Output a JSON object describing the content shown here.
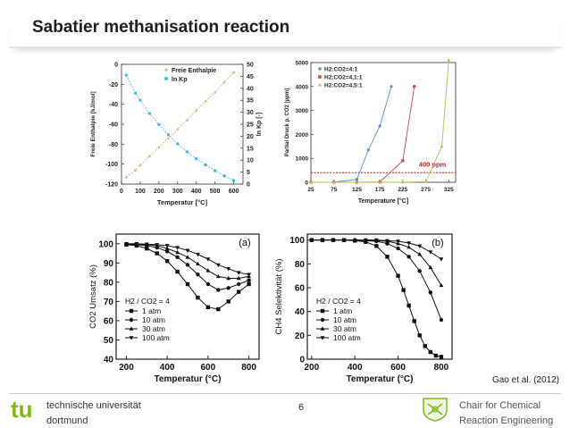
{
  "slide": {
    "title": "Sabatier methanisation reaction",
    "citation": "Gao et al. (2012)",
    "page_number": "6"
  },
  "footer": {
    "logo_text": "tu",
    "university_line1": "technische universität",
    "university_line2": "dortmund",
    "chair_line1": "Chair for Chemical",
    "chair_line2": "Reaction Engineering"
  },
  "chart_data": [
    {
      "type": "line",
      "xlabel": "Temperatur [°C]",
      "ylabel": "Freie Enthalpie [kJ/mol]",
      "y2label": "ln Kp [-]",
      "xlim": [
        0,
        650
      ],
      "ylim": [
        -120,
        0
      ],
      "y2lim": [
        0,
        50
      ],
      "xticks": [
        "0",
        "100",
        "200",
        "300",
        "400",
        "500",
        "600"
      ],
      "yticks": [
        "0",
        "-20",
        "-40",
        "-60",
        "-80",
        "-100",
        "-120"
      ],
      "y2ticks": [
        "50",
        "45",
        "40",
        "35",
        "30",
        "25",
        "20",
        "15",
        "10",
        "5",
        "0"
      ],
      "legend_position": "top-left",
      "series": [
        {
          "name": "Freie Enthalpie",
          "axis": "left",
          "color": "#e8a466",
          "x": [
            25,
            75,
            100,
            150,
            200,
            250,
            300,
            350,
            400,
            450,
            500,
            550,
            600
          ],
          "values": [
            -113,
            -106,
            -101,
            -92,
            -83,
            -74,
            -65,
            -56,
            -46,
            -37,
            -28,
            -18,
            -8
          ]
        },
        {
          "name": "ln Kp",
          "axis": "right",
          "color": "#3fb4dc",
          "x": [
            25,
            75,
            100,
            150,
            200,
            250,
            300,
            350,
            400,
            450,
            500,
            550,
            600
          ],
          "values": [
            45.5,
            38,
            35,
            29.5,
            24.8,
            20.6,
            16.8,
            13.5,
            10.6,
            8,
            5.6,
            3.4,
            1.5
          ]
        }
      ]
    },
    {
      "type": "line",
      "xlabel": "Temperature [°C]",
      "ylabel": "Partial Druck p. CO2 [ppm]",
      "xlim": [
        25,
        340
      ],
      "ylim": [
        0,
        5000
      ],
      "xticks": [
        "25",
        "75",
        "125",
        "175",
        "225",
        "275",
        "325"
      ],
      "yticks": [
        "0",
        "1000",
        "2000",
        "3000",
        "4000",
        "5000"
      ],
      "annotation": "400 ppm",
      "reference_value": 400,
      "legend_position": "top-left",
      "series": [
        {
          "name": "H2:CO2=4:1",
          "color": "#5b8fd6",
          "x": [
            25,
            75,
            125,
            150,
            175,
            200
          ],
          "values": [
            0,
            5,
            120,
            1350,
            2350,
            4000
          ]
        },
        {
          "name": "H2:CO2=4,1:1",
          "color": "#d2464b",
          "x": [
            25,
            75,
            125,
            175,
            225,
            250
          ],
          "values": [
            0,
            0,
            0,
            10,
            900,
            4000
          ]
        },
        {
          "name": "H2:CO2=4,5:1",
          "color": "#b7b84e",
          "x": [
            25,
            75,
            125,
            175,
            225,
            275,
            310,
            325
          ],
          "values": [
            0,
            0,
            0,
            0,
            0,
            20,
            1500,
            5100
          ]
        }
      ]
    },
    {
      "type": "line",
      "panel_label": "(a)",
      "xlabel": "Temperatur (°C)",
      "ylabel": "CO2 Umsatz (%)",
      "xlim": [
        150,
        850
      ],
      "ylim": [
        40,
        105
      ],
      "xticks": [
        "200",
        "400",
        "600",
        "800"
      ],
      "yticks": [
        "40",
        "50",
        "60",
        "70",
        "80",
        "90",
        "100"
      ],
      "legend_title": "H2 / CO2 = 4",
      "legend_position": "bottom-left",
      "series": [
        {
          "name": "1 atm",
          "marker": "square",
          "x": [
            200,
            250,
            300,
            350,
            400,
            450,
            500,
            550,
            600,
            650,
            700,
            750,
            800
          ],
          "values": [
            99.5,
            99,
            97.5,
            95,
            91,
            85.5,
            79,
            72,
            67,
            66,
            70,
            75,
            79
          ]
        },
        {
          "name": "10 atm",
          "marker": "circle",
          "x": [
            200,
            250,
            300,
            350,
            400,
            450,
            500,
            550,
            600,
            650,
            700,
            750,
            800
          ],
          "values": [
            99.8,
            99.5,
            99,
            98,
            96,
            93,
            89,
            84,
            79,
            76,
            77,
            79,
            81
          ]
        },
        {
          "name": "30 atm",
          "marker": "triangle-up",
          "x": [
            200,
            250,
            300,
            350,
            400,
            450,
            500,
            550,
            600,
            650,
            700,
            750,
            800
          ],
          "values": [
            99.9,
            99.8,
            99.5,
            99,
            97.5,
            95.5,
            93,
            89.5,
            86,
            83,
            82,
            82,
            83
          ]
        },
        {
          "name": "100 atm",
          "marker": "triangle-down",
          "x": [
            200,
            250,
            300,
            350,
            400,
            450,
            500,
            550,
            600,
            650,
            700,
            750,
            800
          ],
          "values": [
            100,
            100,
            99.8,
            99.5,
            99,
            98,
            96.5,
            94.5,
            92,
            89,
            87,
            85,
            84
          ]
        }
      ]
    },
    {
      "type": "line",
      "panel_label": "(b)",
      "xlabel": "Temperatur (°C)",
      "ylabel": "CH4 Selektivität (%)",
      "xlim": [
        180,
        850
      ],
      "ylim": [
        0,
        105
      ],
      "xticks": [
        "200",
        "400",
        "600",
        "800"
      ],
      "yticks": [
        "0",
        "20",
        "40",
        "60",
        "80",
        "100"
      ],
      "legend_title": "H2 / CO2 = 4",
      "legend_position": "bottom-left",
      "series": [
        {
          "name": "1 atm",
          "marker": "square",
          "x": [
            200,
            250,
            300,
            350,
            400,
            450,
            500,
            550,
            600,
            625,
            650,
            675,
            700,
            725,
            750,
            775,
            800
          ],
          "values": [
            100,
            100,
            100,
            100,
            99.5,
            98.5,
            95,
            86,
            70,
            58,
            45,
            32,
            20,
            11,
            6,
            3,
            2
          ]
        },
        {
          "name": "10 atm",
          "marker": "circle",
          "x": [
            200,
            250,
            300,
            350,
            400,
            450,
            500,
            550,
            600,
            650,
            700,
            750,
            800
          ],
          "values": [
            100,
            100,
            100,
            100,
            100,
            99.5,
            99,
            97,
            93,
            86,
            74,
            56,
            33
          ]
        },
        {
          "name": "30 atm",
          "marker": "triangle-up",
          "x": [
            200,
            250,
            300,
            350,
            400,
            450,
            500,
            550,
            600,
            650,
            700,
            750,
            800
          ],
          "values": [
            100,
            100,
            100,
            100,
            100,
            100,
            99.5,
            99,
            97,
            94,
            88,
            77,
            62
          ]
        },
        {
          "name": "100 atm",
          "marker": "triangle-down",
          "x": [
            200,
            250,
            300,
            350,
            400,
            450,
            500,
            550,
            600,
            650,
            700,
            750,
            800
          ],
          "values": [
            100,
            100,
            100,
            100,
            100,
            100,
            100,
            99.5,
            99,
            97.5,
            95,
            90,
            84
          ]
        }
      ]
    }
  ]
}
